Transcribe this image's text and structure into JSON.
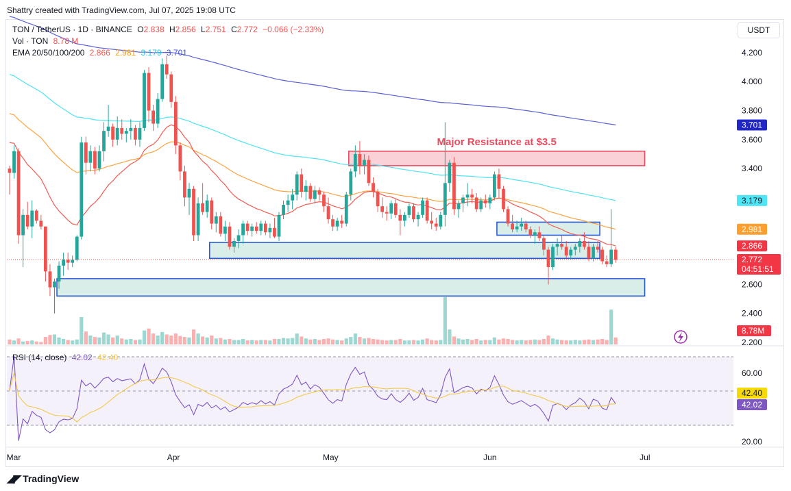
{
  "header": {
    "credit": "Shattry created with TradingView.com, Jul 07, 2025 19:08 UTC",
    "symbol": "TON / TetherUS · 1D · BINANCE",
    "o_label": "O",
    "o": "2.838",
    "h_label": "H",
    "h": "2.856",
    "l_label": "L",
    "l": "2.751",
    "c_label": "C",
    "c": "2.772",
    "change": "−0.066 (−2.33%)",
    "vol_label": "Vol · TON",
    "vol": "8.78 M",
    "ema_label": "EMA 20/50/100/200",
    "ema20": "2.866",
    "ema50": "2.981",
    "ema100": "3.179",
    "ema200": "3.701",
    "rsi_label": "RSI (14, close)",
    "rsi": "42.02",
    "rsi_ma": "42.40",
    "currency": "USDT",
    "brand": "TradingView"
  },
  "colors": {
    "up": "#26a69a",
    "down": "#ef5350",
    "ema20": "#f15a52",
    "ema50": "#ffa23f",
    "ema100": "#4fe3f2",
    "ema200": "#5b5fd6",
    "rsi": "#7e57c2",
    "rsi_ma": "#f2c94c",
    "resistance": "#e84c5f",
    "support": "#2a5bd7"
  },
  "chart_data": {
    "type": "candlestick",
    "price_axis": {
      "ticks": [
        4.2,
        4.0,
        3.8,
        3.6,
        3.4,
        3.2,
        3.0,
        2.8,
        2.6,
        2.4,
        2.2
      ],
      "tick_labels": [
        "4.200",
        "4.000",
        "3.800",
        "3.600",
        "3.400",
        "",
        "",
        "",
        "2.600",
        "2.400",
        "2.200"
      ],
      "range": [
        2.2,
        4.28
      ]
    },
    "x_labels": [
      "Mar",
      "Apr",
      "May",
      "Jun",
      "Jul"
    ],
    "candles": [
      [
        3.4,
        3.42,
        3.22,
        3.37
      ],
      [
        3.37,
        3.56,
        3.33,
        3.52
      ],
      [
        3.52,
        3.54,
        2.88,
        2.94
      ],
      [
        2.94,
        3.12,
        2.72,
        3.08
      ],
      [
        3.08,
        3.17,
        2.98,
        3.0
      ],
      [
        3.0,
        3.18,
        2.92,
        3.11
      ],
      [
        3.11,
        3.12,
        3.02,
        3.04
      ],
      [
        3.04,
        3.08,
        2.98,
        3.0
      ],
      [
        3.0,
        3.0,
        2.62,
        2.69
      ],
      [
        2.69,
        2.74,
        2.52,
        2.58
      ],
      [
        2.58,
        2.64,
        2.4,
        2.62
      ],
      [
        2.62,
        2.76,
        2.57,
        2.73
      ],
      [
        2.73,
        2.82,
        2.66,
        2.77
      ],
      [
        2.77,
        2.82,
        2.7,
        2.75
      ],
      [
        2.75,
        2.8,
        2.72,
        2.77
      ],
      [
        2.77,
        2.94,
        2.76,
        2.93
      ],
      [
        2.93,
        3.62,
        2.91,
        3.58
      ],
      [
        3.58,
        3.62,
        3.36,
        3.44
      ],
      [
        3.44,
        3.56,
        3.38,
        3.52
      ],
      [
        3.52,
        3.55,
        3.36,
        3.4
      ],
      [
        3.4,
        3.56,
        3.38,
        3.52
      ],
      [
        3.52,
        3.72,
        3.45,
        3.66
      ],
      [
        3.66,
        3.84,
        3.62,
        3.69
      ],
      [
        3.69,
        3.71,
        3.55,
        3.6
      ],
      [
        3.6,
        3.76,
        3.56,
        3.68
      ],
      [
        3.68,
        3.74,
        3.6,
        3.64
      ],
      [
        3.64,
        3.68,
        3.58,
        3.66
      ],
      [
        3.66,
        3.74,
        3.6,
        3.68
      ],
      [
        3.68,
        3.7,
        3.56,
        3.6
      ],
      [
        3.6,
        3.72,
        3.55,
        3.68
      ],
      [
        3.68,
        4.08,
        3.66,
        4.06
      ],
      [
        4.06,
        4.1,
        3.72,
        3.8
      ],
      [
        3.8,
        3.84,
        3.66,
        3.71
      ],
      [
        3.71,
        3.92,
        3.68,
        3.88
      ],
      [
        3.88,
        4.16,
        3.86,
        4.12
      ],
      [
        4.12,
        4.18,
        4.02,
        4.05
      ],
      [
        4.05,
        4.07,
        3.82,
        3.86
      ],
      [
        3.86,
        3.9,
        3.5,
        3.56
      ],
      [
        3.56,
        3.58,
        3.32,
        3.38
      ],
      [
        3.38,
        3.42,
        3.14,
        3.2
      ],
      [
        3.2,
        3.3,
        3.08,
        3.26
      ],
      [
        3.26,
        3.28,
        2.9,
        2.94
      ],
      [
        2.94,
        3.2,
        2.9,
        3.16
      ],
      [
        3.16,
        3.3,
        3.08,
        3.1
      ],
      [
        3.1,
        3.22,
        3.06,
        3.18
      ],
      [
        3.18,
        3.2,
        2.98,
        3.02
      ],
      [
        3.02,
        3.1,
        2.96,
        3.07
      ],
      [
        3.07,
        3.1,
        2.93,
        2.95
      ],
      [
        2.95,
        3.04,
        2.9,
        3.0
      ],
      [
        3.0,
        3.03,
        2.84,
        2.86
      ],
      [
        2.86,
        2.92,
        2.82,
        2.9
      ],
      [
        2.9,
        2.98,
        2.85,
        2.94
      ],
      [
        2.94,
        3.04,
        2.88,
        3.02
      ],
      [
        3.02,
        3.04,
        2.94,
        2.97
      ],
      [
        2.97,
        3.02,
        2.93,
        3.0
      ],
      [
        3.0,
        3.03,
        2.95,
        2.97
      ],
      [
        2.97,
        3.04,
        2.94,
        3.02
      ],
      [
        3.02,
        3.04,
        2.94,
        2.96
      ],
      [
        2.96,
        3.02,
        2.92,
        2.99
      ],
      [
        2.99,
        3.06,
        2.92,
        2.93
      ],
      [
        2.93,
        3.1,
        2.9,
        3.08
      ],
      [
        3.08,
        3.18,
        3.05,
        3.15
      ],
      [
        3.15,
        3.22,
        3.1,
        3.18
      ],
      [
        3.18,
        3.26,
        3.12,
        3.22
      ],
      [
        3.22,
        3.38,
        3.18,
        3.36
      ],
      [
        3.36,
        3.4,
        3.2,
        3.24
      ],
      [
        3.24,
        3.32,
        3.18,
        3.28
      ],
      [
        3.28,
        3.3,
        3.17,
        3.19
      ],
      [
        3.19,
        3.28,
        3.16,
        3.25
      ],
      [
        3.25,
        3.27,
        3.18,
        3.22
      ],
      [
        3.22,
        3.24,
        3.1,
        3.14
      ],
      [
        3.14,
        3.2,
        3.02,
        3.05
      ],
      [
        3.05,
        3.08,
        2.97,
        3.0
      ],
      [
        3.0,
        3.06,
        2.97,
        3.04
      ],
      [
        3.04,
        3.08,
        2.99,
        3.02
      ],
      [
        3.02,
        3.24,
        3.0,
        3.22
      ],
      [
        3.22,
        3.4,
        3.18,
        3.38
      ],
      [
        3.38,
        3.56,
        3.34,
        3.5
      ],
      [
        3.5,
        3.59,
        3.36,
        3.42
      ],
      [
        3.42,
        3.5,
        3.36,
        3.46
      ],
      [
        3.46,
        3.49,
        3.28,
        3.3
      ],
      [
        3.3,
        3.34,
        3.2,
        3.24
      ],
      [
        3.24,
        3.26,
        3.1,
        3.14
      ],
      [
        3.14,
        3.2,
        3.06,
        3.1
      ],
      [
        3.1,
        3.14,
        3.04,
        3.09
      ],
      [
        3.09,
        3.18,
        3.05,
        3.16
      ],
      [
        3.16,
        3.19,
        3.06,
        3.08
      ],
      [
        3.08,
        3.12,
        2.94,
        3.04
      ],
      [
        3.04,
        3.1,
        3.0,
        3.08
      ],
      [
        3.08,
        3.16,
        3.06,
        3.14
      ],
      [
        3.14,
        3.16,
        3.03,
        3.05
      ],
      [
        3.05,
        3.1,
        3.0,
        3.08
      ],
      [
        3.08,
        3.2,
        3.06,
        3.18
      ],
      [
        3.18,
        3.2,
        3.02,
        3.04
      ],
      [
        3.04,
        3.1,
        2.98,
        3.02
      ],
      [
        3.02,
        3.06,
        2.97,
        3.0
      ],
      [
        3.0,
        3.1,
        2.98,
        3.08
      ],
      [
        3.08,
        3.72,
        3.0,
        3.3
      ],
      [
        3.3,
        3.46,
        3.24,
        3.44
      ],
      [
        3.44,
        3.48,
        3.08,
        3.12
      ],
      [
        3.12,
        3.18,
        3.06,
        3.16
      ],
      [
        3.16,
        3.22,
        3.1,
        3.2
      ],
      [
        3.2,
        3.3,
        3.14,
        3.22
      ],
      [
        3.22,
        3.26,
        3.16,
        3.2
      ],
      [
        3.2,
        3.23,
        3.1,
        3.12
      ],
      [
        3.12,
        3.2,
        3.1,
        3.18
      ],
      [
        3.18,
        3.22,
        3.13,
        3.16
      ],
      [
        3.16,
        3.22,
        3.12,
        3.2
      ],
      [
        3.2,
        3.38,
        3.18,
        3.36
      ],
      [
        3.36,
        3.4,
        3.2,
        3.26
      ],
      [
        3.26,
        3.28,
        3.1,
        3.12
      ],
      [
        3.12,
        3.14,
        3.0,
        3.02
      ],
      [
        3.02,
        3.08,
        2.96,
        2.98
      ],
      [
        2.98,
        3.04,
        2.96,
        3.0
      ],
      [
        3.0,
        3.06,
        2.97,
        3.02
      ],
      [
        3.02,
        3.04,
        2.96,
        2.98
      ],
      [
        2.98,
        3.0,
        2.92,
        2.94
      ],
      [
        2.94,
        2.98,
        2.88,
        2.96
      ],
      [
        2.96,
        3.0,
        2.9,
        2.92
      ],
      [
        2.92,
        2.94,
        2.8,
        2.84
      ],
      [
        2.84,
        2.86,
        2.6,
        2.72
      ],
      [
        2.72,
        2.88,
        2.7,
        2.86
      ],
      [
        2.86,
        2.92,
        2.8,
        2.88
      ],
      [
        2.88,
        2.94,
        2.84,
        2.86
      ],
      [
        2.86,
        2.9,
        2.78,
        2.8
      ],
      [
        2.8,
        2.86,
        2.77,
        2.84
      ],
      [
        2.84,
        2.88,
        2.8,
        2.86
      ],
      [
        2.86,
        2.92,
        2.82,
        2.9
      ],
      [
        2.9,
        2.96,
        2.84,
        2.86
      ],
      [
        2.86,
        2.9,
        2.76,
        2.78
      ],
      [
        2.78,
        2.88,
        2.76,
        2.86
      ],
      [
        2.86,
        2.9,
        2.82,
        2.84
      ],
      [
        2.84,
        2.86,
        2.74,
        2.76
      ],
      [
        2.76,
        2.8,
        2.72,
        2.74
      ],
      [
        2.74,
        3.12,
        2.72,
        2.84
      ],
      [
        2.84,
        2.86,
        2.75,
        2.77
      ]
    ],
    "volume": [
      10,
      8,
      12,
      6,
      7,
      8,
      6,
      5,
      15,
      19,
      20,
      14,
      11,
      9,
      8,
      10,
      55,
      26,
      18,
      15,
      14,
      24,
      20,
      14,
      18,
      12,
      10,
      11,
      9,
      10,
      28,
      32,
      22,
      18,
      25,
      20,
      18,
      22,
      17,
      15,
      14,
      30,
      22,
      16,
      14,
      18,
      12,
      13,
      10,
      11,
      9,
      9,
      11,
      8,
      9,
      8,
      9,
      9,
      8,
      11,
      11,
      13,
      12,
      13,
      22,
      16,
      12,
      10,
      11,
      9,
      11,
      12,
      10,
      9,
      8,
      12,
      15,
      22,
      15,
      12,
      13,
      11,
      10,
      9,
      8,
      9,
      9,
      11,
      8,
      8,
      9,
      8,
      10,
      12,
      9,
      8,
      9,
      95,
      30,
      16,
      12,
      10,
      11,
      9,
      11,
      8,
      9,
      9,
      14,
      10,
      12,
      11,
      9,
      8,
      9,
      8,
      9,
      10,
      9,
      11,
      18,
      12,
      10,
      9,
      8,
      8,
      9,
      8,
      9,
      10,
      9,
      10,
      11,
      9,
      70,
      14
    ],
    "volume_axis_label": "8.78M",
    "ema": {
      "ema20": {
        "name": "EMA 20",
        "last": 2.866
      },
      "ema50": {
        "name": "EMA 50",
        "last": 2.981
      },
      "ema100": {
        "name": "EMA 100",
        "last": 3.179
      },
      "ema200": {
        "name": "EMA 200",
        "last": 3.701
      }
    },
    "last_price": {
      "value": "2.772",
      "countdown": "04:51:51"
    },
    "zones": [
      {
        "type": "resistance",
        "label": "Major Resistance at $3.5",
        "start": 76,
        "end": 141,
        "low": 3.42,
        "high": 3.52
      },
      {
        "type": "support",
        "start": 109,
        "end": 131,
        "low": 2.94,
        "high": 3.03
      },
      {
        "type": "support",
        "start": 45,
        "end": 131,
        "low": 2.78,
        "high": 2.89
      },
      {
        "type": "support",
        "start": 11,
        "end": 141,
        "low": 2.52,
        "high": 2.64
      }
    ],
    "rsi": {
      "axis_ticks": [
        60,
        20
      ],
      "axis_labels": [
        "60.00",
        "20.00"
      ],
      "bands": [
        70,
        50,
        30
      ],
      "last": "42.02",
      "ma_last": "42.40"
    }
  }
}
